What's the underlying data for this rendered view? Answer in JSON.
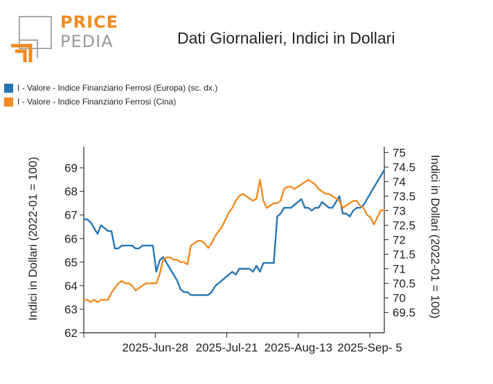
{
  "logo": {
    "word1": "PRICE",
    "word2": "PEDIA",
    "colors": {
      "orange": "#f18a21",
      "gray": "#a0a0a0"
    }
  },
  "chart_data": {
    "type": "line",
    "title": "Dati Giornalieri, Indici in Dollari",
    "ylabel_left": "Indici in Dollari (2022-01 = 100)",
    "ylabel_right": "Indici in Dollari (2022-01 = 100)",
    "legend_position": "top-left",
    "grid": false,
    "x": [
      0,
      1,
      2,
      3,
      4,
      5,
      6,
      7,
      8,
      9,
      10,
      11,
      12,
      13,
      14,
      15,
      16,
      17,
      18,
      19,
      20,
      21,
      22,
      23,
      24,
      25,
      26,
      27,
      28,
      29,
      30,
      31,
      32,
      33,
      34,
      35,
      36,
      37,
      38,
      39,
      40,
      41,
      42,
      43,
      44,
      45,
      46,
      47,
      48,
      49,
      50,
      51,
      52,
      53,
      54,
      55,
      56,
      57,
      58,
      59,
      60,
      61,
      62,
      63,
      64,
      65,
      66,
      67,
      68,
      69,
      70,
      71,
      72,
      73,
      74,
      75,
      76,
      77,
      78,
      79,
      80,
      81,
      82,
      83,
      84,
      85,
      86,
      87
    ],
    "x_ticks": [
      {
        "x": 0,
        "label": ""
      },
      {
        "x": 20.7,
        "label": "2025-Jun-28"
      },
      {
        "x": 41.4,
        "label": "2025-Jul-21"
      },
      {
        "x": 62.1,
        "label": "2025-Aug-13"
      },
      {
        "x": 82.8,
        "label": "2025-Sep- 5"
      }
    ],
    "xlim": [
      0,
      87
    ],
    "y_left": {
      "ylim": [
        62,
        69.9
      ],
      "ticks": [
        62,
        63,
        64,
        65,
        66,
        67,
        68,
        69
      ]
    },
    "y_right": {
      "ylim": [
        68.8,
        75.2
      ],
      "ticks": [
        69.5,
        70,
        70.5,
        71,
        71.5,
        72,
        72.5,
        73,
        73.5,
        74,
        74.5,
        75
      ]
    },
    "series": [
      {
        "name": "I - Valore - Indice Finanziario Ferrosi (Europa) (sc. dx.)",
        "color": "#2474b3",
        "axis": "right",
        "values": [
          72.7,
          72.7,
          72.6,
          72.4,
          72.2,
          72.5,
          72.4,
          72.3,
          72.3,
          71.7,
          71.7,
          71.8,
          71.8,
          71.8,
          71.8,
          71.7,
          71.7,
          71.8,
          71.8,
          71.8,
          71.8,
          70.9,
          71.3,
          71.4,
          71.2,
          71.0,
          70.8,
          70.6,
          70.3,
          70.2,
          70.2,
          70.1,
          70.1,
          70.1,
          70.1,
          70.1,
          70.1,
          70.2,
          70.4,
          70.5,
          70.6,
          70.7,
          70.8,
          70.9,
          70.8,
          71.0,
          71.0,
          71.0,
          71.0,
          70.9,
          71.1,
          70.9,
          71.2,
          71.2,
          71.2,
          71.2,
          72.8,
          72.9,
          73.1,
          73.1,
          73.1,
          73.2,
          73.3,
          73.4,
          73.1,
          73.1,
          73.0,
          73.1,
          73.1,
          73.3,
          73.2,
          73.1,
          73.1,
          73.3,
          73.5,
          72.9,
          72.9,
          72.8,
          73.0,
          73.1,
          73.1,
          73.2,
          73.4,
          73.6,
          73.8,
          74.0,
          74.2,
          74.4
        ]
      },
      {
        "name": "I - Valore - Indice Finanziario Ferrosi (Cina)",
        "color": "#f18a21",
        "axis": "left",
        "values": [
          63.4,
          63.4,
          63.3,
          63.4,
          63.3,
          63.4,
          63.4,
          63.4,
          63.7,
          63.9,
          64.1,
          64.2,
          64.1,
          64.1,
          64.0,
          63.8,
          63.9,
          64.0,
          64.1,
          64.1,
          64.1,
          64.1,
          64.5,
          65.1,
          65.2,
          65.2,
          65.1,
          65.1,
          65.0,
          65.0,
          64.9,
          65.7,
          65.8,
          65.9,
          65.9,
          65.8,
          65.6,
          65.8,
          66.1,
          66.3,
          66.5,
          66.8,
          67.1,
          67.3,
          67.6,
          67.8,
          67.9,
          67.8,
          67.7,
          67.6,
          67.7,
          68.5,
          67.6,
          67.3,
          67.4,
          67.5,
          67.5,
          67.6,
          68.1,
          68.2,
          68.2,
          68.1,
          68.2,
          68.3,
          68.4,
          68.5,
          68.4,
          68.3,
          68.1,
          68.0,
          67.9,
          67.9,
          67.8,
          67.7,
          67.6,
          67.3,
          67.4,
          67.5,
          67.6,
          67.6,
          67.4,
          67.3,
          67.0,
          66.9,
          66.6,
          66.9,
          67.2,
          67.2
        ]
      }
    ]
  }
}
